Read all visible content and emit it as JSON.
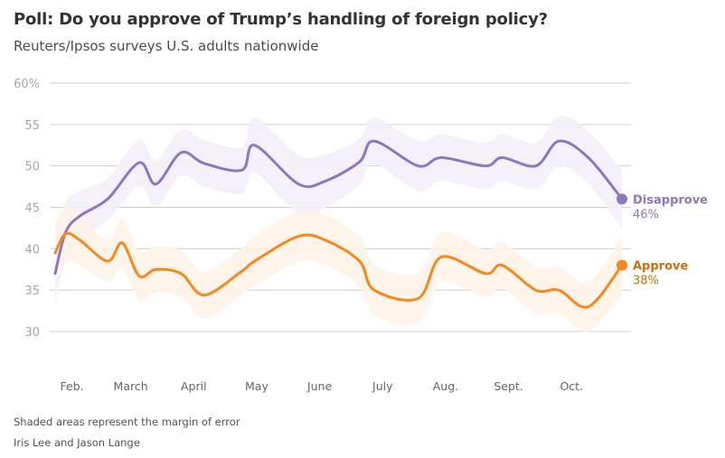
{
  "chart_data": {
    "type": "line",
    "title": "Poll: Do you approve of Trump’s handling of foreign policy?",
    "subtitle": "Reuters/Ipsos surveys U.S. adults nationwide",
    "xlabel": "",
    "ylabel": "",
    "ylim": [
      30,
      60
    ],
    "yticks": [
      60,
      55,
      50,
      45,
      40,
      35,
      30
    ],
    "ytick_labels": [
      "60%",
      "55",
      "50",
      "45",
      "40",
      "35",
      "30"
    ],
    "grid": true,
    "x_range_days": [
      0,
      270
    ],
    "xticks": [
      {
        "label": "Feb.",
        "day": 8
      },
      {
        "label": "March",
        "day": 36
      },
      {
        "label": "April",
        "day": 66
      },
      {
        "label": "May",
        "day": 96
      },
      {
        "label": "June",
        "day": 126
      },
      {
        "label": "July",
        "day": 156
      },
      {
        "label": "Aug.",
        "day": 186
      },
      {
        "label": "Sept.",
        "day": 216
      },
      {
        "label": "Oct.",
        "day": 246
      }
    ],
    "series": [
      {
        "name": "Disapprove",
        "final_label": "46%",
        "color": "#8c77c2",
        "band_color": "#f3f0f9",
        "x": [
          0,
          5,
          12,
          25,
          40,
          48,
          60,
          71,
          89,
          95,
          116,
          129,
          145,
          152,
          173,
          184,
          205,
          213,
          229,
          240,
          254,
          270
        ],
        "values": [
          37,
          42,
          44,
          46,
          50.4,
          47.8,
          51.6,
          50.3,
          49.5,
          52.5,
          47.8,
          48.2,
          50.5,
          53,
          50,
          51,
          50,
          51,
          50,
          53,
          51,
          46
        ],
        "margin": [
          3.5,
          3.5,
          3,
          2.5,
          2.8,
          2.8,
          2.8,
          2.8,
          2.8,
          3.3,
          3.5,
          3.2,
          2.8,
          2.8,
          3,
          2.8,
          2.8,
          2.8,
          2.8,
          3,
          3.2,
          3.5
        ]
      },
      {
        "name": "Approve",
        "final_label": "38%",
        "color": "#f5891f",
        "band_color": "#fef3e8",
        "x": [
          0,
          5,
          12,
          25,
          32,
          40,
          48,
          60,
          71,
          89,
          95,
          116,
          129,
          145,
          152,
          173,
          184,
          205,
          213,
          229,
          240,
          254,
          270
        ],
        "values": [
          39.5,
          41.8,
          41,
          38.5,
          40.7,
          36.7,
          37.5,
          37,
          34.4,
          37.3,
          38.5,
          41.5,
          41,
          38.5,
          35,
          34,
          39,
          37,
          38,
          35,
          35,
          33,
          38
        ],
        "margin": [
          3.5,
          3.5,
          3,
          2.5,
          3,
          3,
          2.8,
          2.8,
          2.8,
          2.8,
          3,
          3,
          3,
          3,
          3,
          3,
          3,
          2.8,
          2.8,
          2.8,
          2.8,
          3,
          3.5
        ]
      }
    ]
  },
  "footer": {
    "note": "Shaded areas represent the margin of error",
    "credit": "Iris Lee and Jason Lange"
  }
}
